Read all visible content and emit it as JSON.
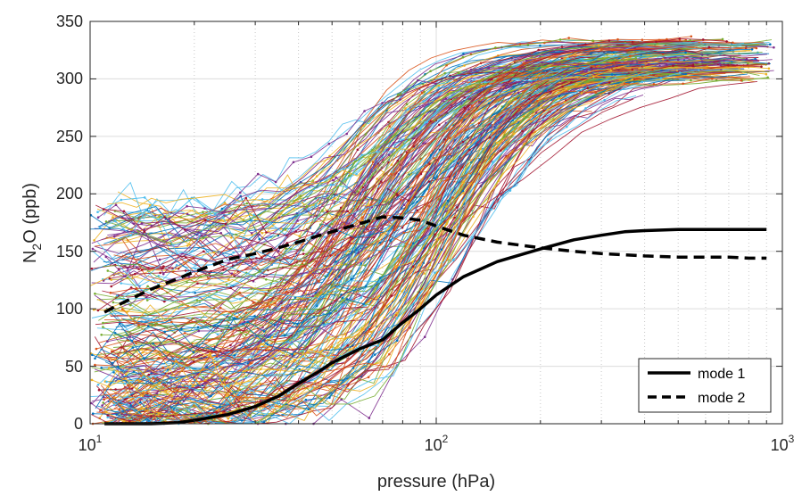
{
  "chart_data": {
    "type": "line",
    "xlabel": "pressure (hPa)",
    "ylabel_base": "N",
    "ylabel_sub": "2",
    "ylabel_rest": "O (ppb)",
    "x_scale": "log",
    "xlim": [
      10,
      1000
    ],
    "ylim": [
      0,
      350
    ],
    "grid": true,
    "x_ticks": [
      {
        "base": "10",
        "exp": "1"
      },
      {
        "base": "10",
        "exp": "2"
      },
      {
        "base": "10",
        "exp": "3"
      }
    ],
    "y_ticks": [
      "0",
      "50",
      "100",
      "150",
      "200",
      "250",
      "300",
      "350"
    ],
    "legend_position": "bottom-right",
    "series": [
      {
        "name": "mode 1",
        "style": "solid",
        "color": "#000000",
        "x": [
          11,
          12,
          15,
          18,
          20,
          25,
          30,
          35,
          40,
          45,
          50,
          60,
          70,
          80,
          90,
          100,
          120,
          150,
          200,
          250,
          300,
          350,
          400,
          500,
          600,
          700,
          800,
          900
        ],
        "y": [
          0,
          0,
          0,
          1,
          3,
          8,
          15,
          24,
          35,
          44,
          53,
          65,
          73,
          88,
          100,
          112,
          128,
          141,
          152,
          160,
          164,
          167,
          168,
          169,
          169,
          169,
          169,
          169
        ]
      },
      {
        "name": "mode 2",
        "style": "dashed",
        "color": "#000000",
        "x": [
          11,
          12,
          15,
          20,
          25,
          30,
          35,
          40,
          45,
          50,
          60,
          70,
          80,
          90,
          100,
          120,
          150,
          200,
          250,
          300,
          350,
          400,
          500,
          600,
          700,
          800,
          900
        ],
        "y": [
          97,
          103,
          117,
          132,
          143,
          148,
          153,
          158,
          163,
          167,
          174,
          180,
          179,
          177,
          172,
          164,
          158,
          153,
          150,
          148,
          147,
          146,
          145,
          145,
          145,
          144,
          144
        ]
      }
    ],
    "background_profiles": {
      "description": "",
      "count": 220,
      "palette": [
        "#0072BD",
        "#D95319",
        "#EDB120",
        "#7E2F8E",
        "#77AC30",
        "#4DBEEE",
        "#A2142F"
      ]
    }
  }
}
